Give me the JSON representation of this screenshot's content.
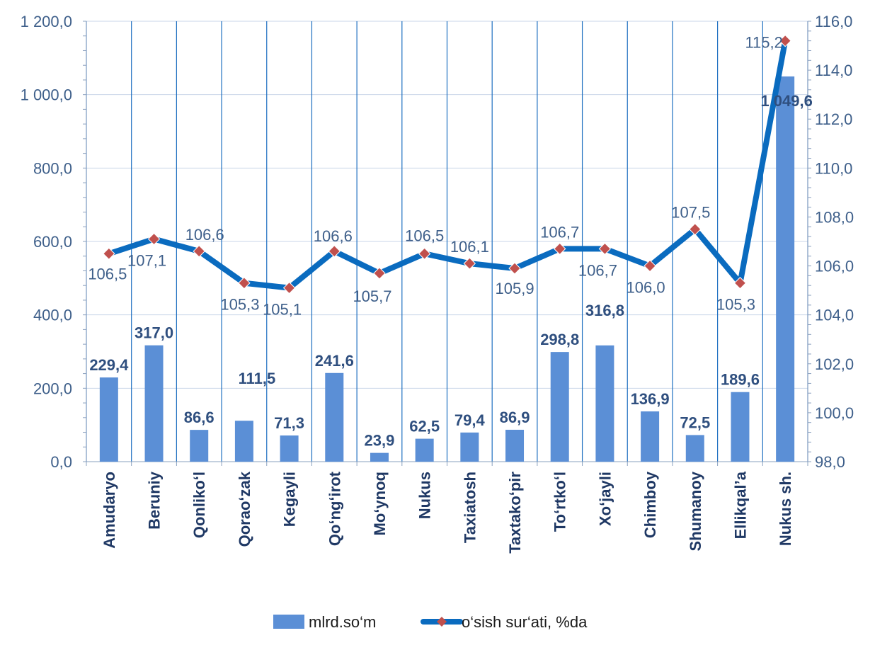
{
  "chart_data": {
    "type": "bar",
    "categories": [
      "Amudaryo",
      "Beruniy",
      "Qonliko‘l",
      "Qorao‘zak",
      "Kegayli",
      "Qo‘ng‘irot",
      "Mo‘ynoq",
      "Nukus",
      "Taxiatosh",
      "Taxtako‘pir",
      "To‘rtko‘l",
      "Xo‘jayli",
      "Chimboy",
      "Shumanoy",
      "Ellikqal’a",
      "Nukus sh."
    ],
    "series": [
      {
        "name": "mlrd.so‘m",
        "type": "bar",
        "axis": "left",
        "color": "#5b8fd6",
        "values": [
          229.4,
          317.0,
          86.6,
          111.5,
          71.3,
          241.6,
          23.9,
          62.5,
          79.4,
          86.9,
          298.8,
          316.8,
          136.9,
          72.5,
          189.6,
          1049.6
        ],
        "labels": [
          "229,4",
          "317,0",
          "86,6",
          "111,5",
          "71,3",
          "241,6",
          "23,9",
          "62,5",
          "79,4",
          "86,9",
          "298,8",
          "316,8",
          "136,9",
          "72,5",
          "189,6",
          "1 049,6"
        ]
      },
      {
        "name": "o‘sish sur‘ati, %da",
        "type": "line",
        "axis": "right",
        "color": "#0a6bbf",
        "marker_color": "#c0504d",
        "values": [
          106.5,
          107.1,
          106.6,
          105.3,
          105.1,
          106.6,
          105.7,
          106.5,
          106.1,
          105.9,
          106.7,
          106.7,
          106.0,
          107.5,
          105.3,
          115.2
        ],
        "labels": [
          "106,5",
          "107,1",
          "106,6",
          "105,3",
          "105,1",
          "106,6",
          "105,7",
          "106,5",
          "106,1",
          "105,9",
          "106,7",
          "106,7",
          "106,0",
          "107,5",
          "105,3",
          "115,2"
        ]
      }
    ],
    "y_left": {
      "ylim": [
        0,
        1200
      ],
      "ticks": [
        0,
        200,
        400,
        600,
        800,
        1000,
        1200
      ],
      "tick_labels": [
        "0,0",
        "200,0",
        "400,0",
        "600,0",
        "800,0",
        "1 000,0",
        "1 200,0"
      ]
    },
    "y_right": {
      "ylim": [
        98,
        116
      ],
      "ticks": [
        98,
        100,
        102,
        104,
        106,
        108,
        110,
        112,
        114,
        116
      ],
      "tick_labels": [
        "98,0",
        "100,0",
        "102,0",
        "104,0",
        "106,0",
        "108,0",
        "110,0",
        "112,0",
        "114,0",
        "116,0"
      ]
    },
    "grid": true,
    "legend": "bottom"
  }
}
